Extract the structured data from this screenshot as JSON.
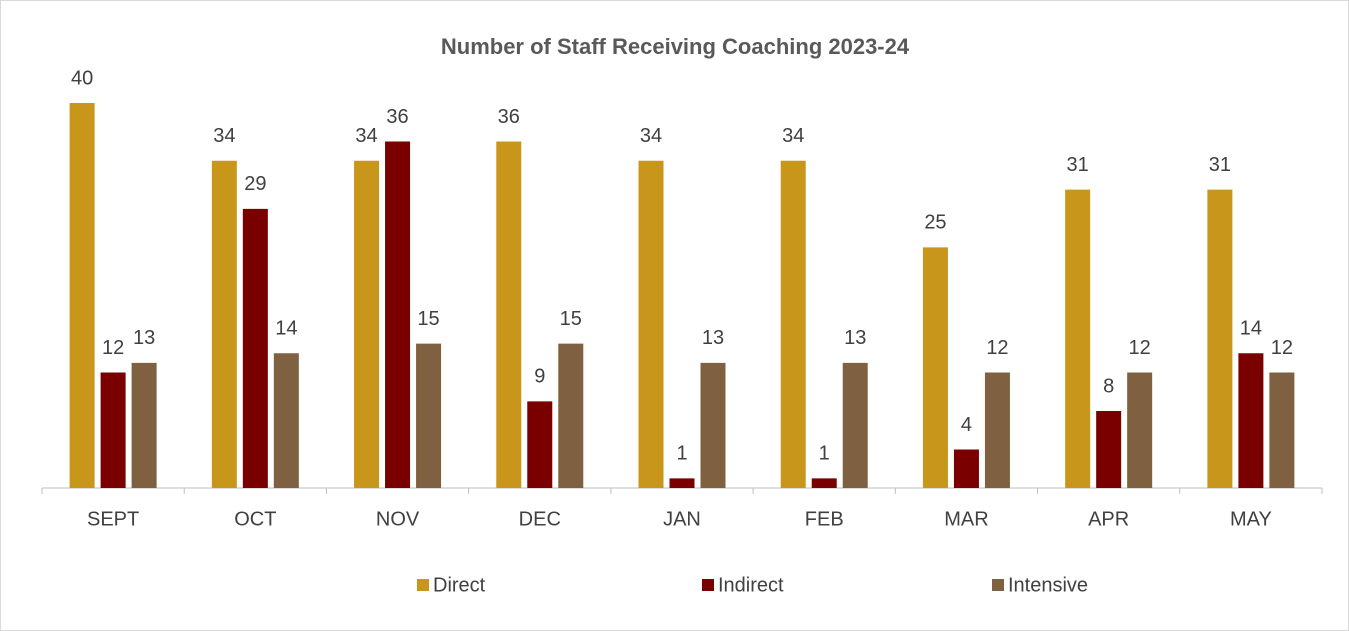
{
  "chart_data": {
    "type": "bar",
    "title": "Number of Staff Receiving Coaching 2023-24",
    "categories": [
      "SEPT",
      "OCT",
      "NOV",
      "DEC",
      "JAN",
      "FEB",
      "MAR",
      "APR",
      "MAY"
    ],
    "series": [
      {
        "name": "Direct",
        "color": "#c8961a",
        "values": [
          40,
          34,
          34,
          36,
          34,
          34,
          25,
          31,
          31
        ]
      },
      {
        "name": "Indirect",
        "color": "#7a0000",
        "values": [
          12,
          29,
          36,
          9,
          1,
          1,
          4,
          8,
          14
        ]
      },
      {
        "name": "Intensive",
        "color": "#7f6141",
        "values": [
          13,
          14,
          15,
          15,
          13,
          13,
          12,
          12,
          12
        ]
      }
    ],
    "legend": "bottom"
  }
}
